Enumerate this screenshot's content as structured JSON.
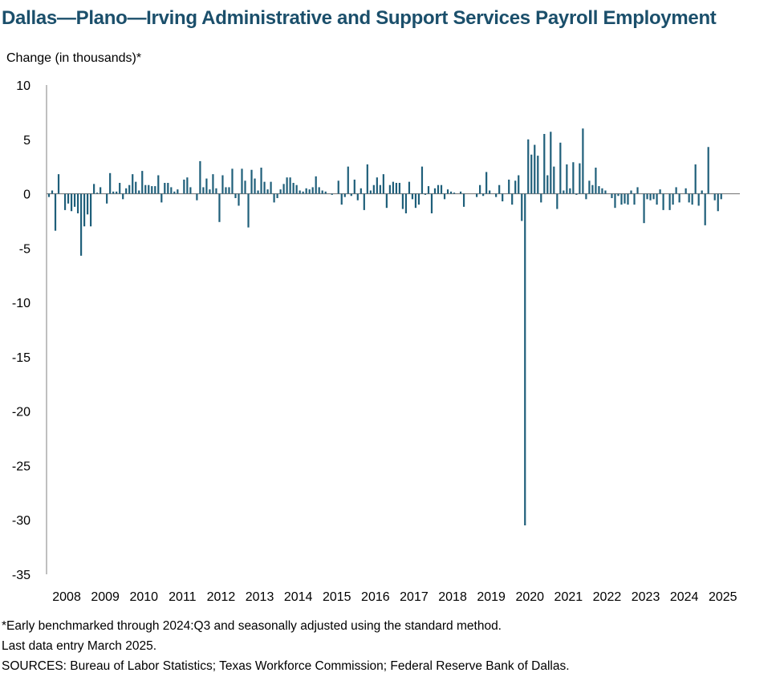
{
  "chart_data": {
    "type": "bar",
    "title": "Dallas—Plano—Irving Administrative and Support Services Payroll Employment",
    "ylabel": "Change (in thousands)*",
    "xlabel": "",
    "ylim": [
      -35,
      10
    ],
    "yticks": [
      10,
      5,
      0,
      -5,
      -10,
      -15,
      -20,
      -25,
      -30,
      -35
    ],
    "xticks": [
      "2008",
      "2009",
      "2010",
      "2011",
      "2012",
      "2013",
      "2014",
      "2015",
      "2016",
      "2017",
      "2018",
      "2019",
      "2020",
      "2021",
      "2022",
      "2023",
      "2024",
      "2025"
    ],
    "start": "2008-01",
    "end": "2025-03",
    "bar_color": "#1f5f7a",
    "values": [
      -0.3,
      0.3,
      -3.4,
      1.8,
      0.0,
      -1.5,
      -0.9,
      -1.6,
      -1.2,
      -1.8,
      -5.7,
      -3.0,
      -1.9,
      -3.0,
      0.9,
      0.1,
      0.6,
      0.0,
      -0.9,
      1.9,
      0.2,
      0.2,
      1.0,
      -0.5,
      0.5,
      0.8,
      1.8,
      1.1,
      0.3,
      2.1,
      0.8,
      0.8,
      0.7,
      0.7,
      1.7,
      -0.8,
      1.0,
      1.0,
      0.6,
      0.2,
      0.4,
      0.0,
      1.3,
      1.5,
      0.6,
      0.0,
      -0.6,
      3.0,
      0.6,
      1.4,
      0.4,
      1.8,
      0.5,
      -2.6,
      1.7,
      0.6,
      0.6,
      2.3,
      -0.4,
      -1.1,
      2.3,
      1.2,
      -3.1,
      2.2,
      1.4,
      0.3,
      2.4,
      1.1,
      0.4,
      1.1,
      -0.8,
      -0.4,
      0.4,
      0.9,
      1.5,
      1.5,
      1.0,
      0.8,
      0.3,
      0.2,
      0.5,
      0.4,
      0.6,
      1.6,
      0.6,
      0.3,
      0.2,
      0.0,
      -0.1,
      0.0,
      1.2,
      -1.0,
      -0.3,
      2.5,
      -0.2,
      1.3,
      -0.6,
      0.5,
      -1.5,
      2.7,
      0.3,
      0.8,
      1.5,
      0.8,
      1.8,
      -1.3,
      0.8,
      1.1,
      1.0,
      1.0,
      -1.4,
      -1.8,
      1.1,
      -0.5,
      -1.3,
      -1.0,
      2.5,
      -0.1,
      0.7,
      -1.8,
      0.5,
      0.8,
      0.8,
      -0.5,
      0.4,
      0.2,
      0.1,
      0.0,
      0.2,
      -1.2,
      0.0,
      0.0,
      0.0,
      -0.3,
      0.8,
      -0.2,
      2.0,
      0.3,
      0.0,
      -0.3,
      0.8,
      -0.7,
      0.0,
      1.3,
      -1.0,
      1.2,
      1.7,
      -2.5,
      -30.5,
      5.0,
      3.6,
      4.5,
      3.5,
      -0.8,
      5.5,
      1.7,
      5.7,
      2.5,
      -1.4,
      4.7,
      0.3,
      2.7,
      0.5,
      2.9,
      -0.1,
      2.8,
      6.0,
      -0.5,
      1.2,
      0.8,
      2.4,
      0.7,
      0.5,
      0.3,
      0.0,
      -0.4,
      -1.3,
      -0.2,
      -1.0,
      -0.9,
      -1.0,
      0.3,
      -1.0,
      0.6,
      0.0,
      -2.7,
      -0.5,
      -0.6,
      -0.5,
      -1.0,
      0.4,
      -1.5,
      0.0,
      -1.5,
      -1.0,
      0.6,
      -0.8,
      0.0,
      0.5,
      -0.8,
      -1.0,
      2.7,
      -1.1,
      0.3,
      -2.9,
      4.3,
      0.0,
      -0.6,
      -1.6,
      -0.5,
      0.0
    ]
  },
  "notes": {
    "footnote": "*Early benchmarked through 2024:Q3 and seasonally adjusted using the standard method.",
    "last_entry": "Last data entry March 2025.",
    "sources": "SOURCES:  Bureau of Labor Statistics; Texas Workforce Commission;  Federal Reserve Bank of Dallas."
  }
}
